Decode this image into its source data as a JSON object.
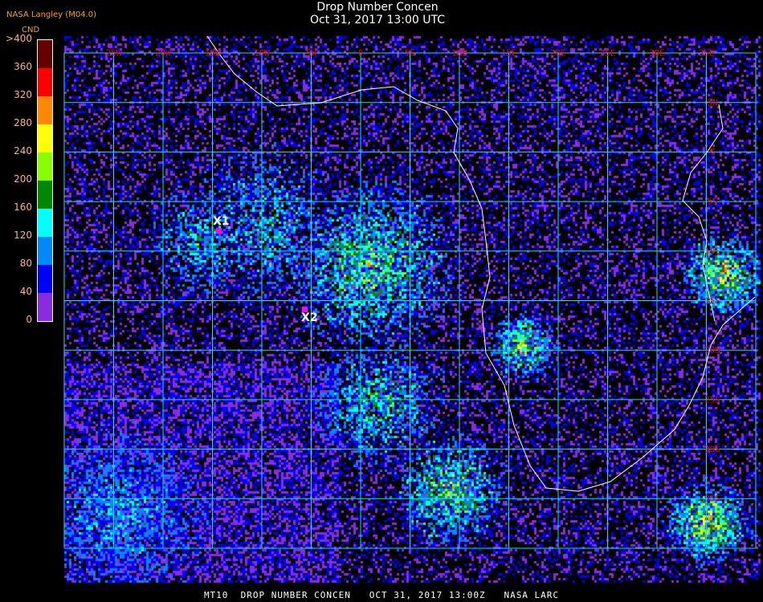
{
  "title": "Drop Number Concen",
  "subtitle": "Oct 31, 2017 13:00 UTC",
  "credit": "NASA Langley (M04.0)",
  "legend": {
    "unit": "CND",
    "ticks": [
      ">400",
      "360",
      "320",
      "280",
      "240",
      "200",
      "160",
      "120",
      "80",
      "40",
      "0"
    ],
    "colors": [
      "#8a2be2",
      "#0000ff",
      "#0088ff",
      "#00ffff",
      "#008800",
      "#88ff00",
      "#ffff00",
      "#ff8800",
      "#ff0000",
      "#660000"
    ]
  },
  "map": {
    "lon_labels": [
      "25W",
      "20W",
      "15W",
      "10W",
      "5W",
      "0",
      "5E",
      "10E",
      "15E",
      "20E",
      "25E",
      "30E",
      "35E"
    ],
    "lat_labels": [
      "5N",
      "0",
      "5S",
      "10S",
      "15S",
      "20S",
      "25S",
      "30S",
      "35S"
    ],
    "grid_color": "#00e5ff",
    "coastline_color": "#ffffff",
    "markers": [
      {
        "label": "X1"
      },
      {
        "label": "X2"
      }
    ]
  },
  "caption": "MT10  DROP NUMBER CONCEN   OCT 31, 2017 13:00Z   NASA LARC"
}
